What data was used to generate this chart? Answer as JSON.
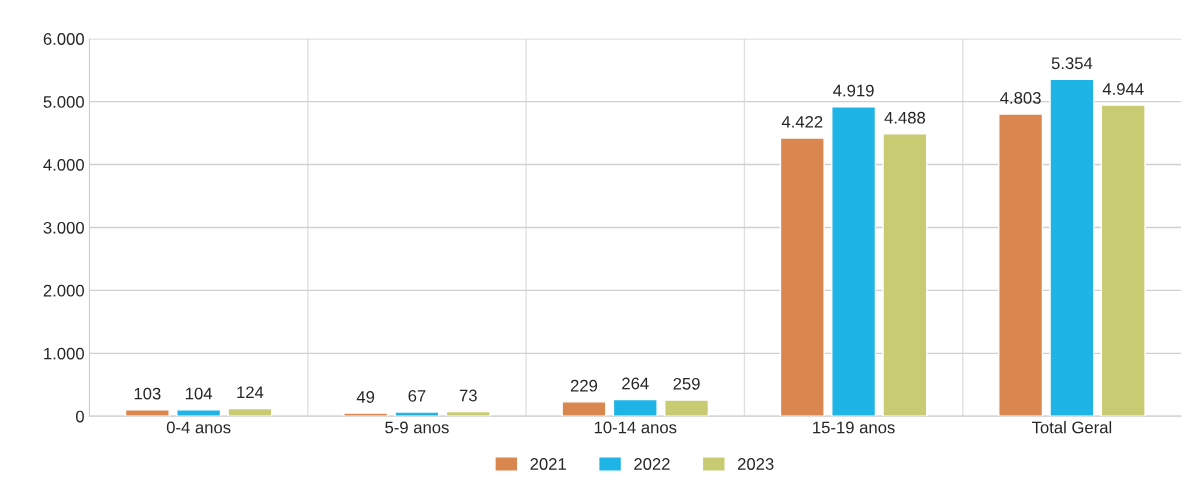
{
  "chart_data": {
    "type": "bar",
    "categories": [
      "0-4 anos",
      "5-9 anos",
      "10-14 anos",
      "15-19 anos",
      "Total Geral"
    ],
    "series": [
      {
        "name": "2021",
        "color": "#d9874f",
        "values": [
          103,
          49,
          229,
          4422,
          4803
        ],
        "value_labels": [
          "103",
          "49",
          "229",
          "4.422",
          "4.803"
        ]
      },
      {
        "name": "2022",
        "color": "#1eb4e6",
        "values": [
          104,
          67,
          264,
          4919,
          5354
        ],
        "value_labels": [
          "104",
          "67",
          "264",
          "4.919",
          "5.354"
        ]
      },
      {
        "name": "2023",
        "color": "#c9cb72",
        "values": [
          124,
          73,
          259,
          4488,
          4944
        ],
        "value_labels": [
          "124",
          "73",
          "259",
          "4.488",
          "4.944"
        ]
      }
    ],
    "ylim": [
      0,
      6000
    ],
    "yticks": [
      {
        "value": 0,
        "label": "0"
      },
      {
        "value": 1000,
        "label": "1.000"
      },
      {
        "value": 2000,
        "label": "2.000"
      },
      {
        "value": 3000,
        "label": "3.000"
      },
      {
        "value": 4000,
        "label": "4.000"
      },
      {
        "value": 5000,
        "label": "5.000"
      },
      {
        "value": 6000,
        "label": "6.000"
      }
    ],
    "grid": true,
    "legend": "bottom"
  }
}
